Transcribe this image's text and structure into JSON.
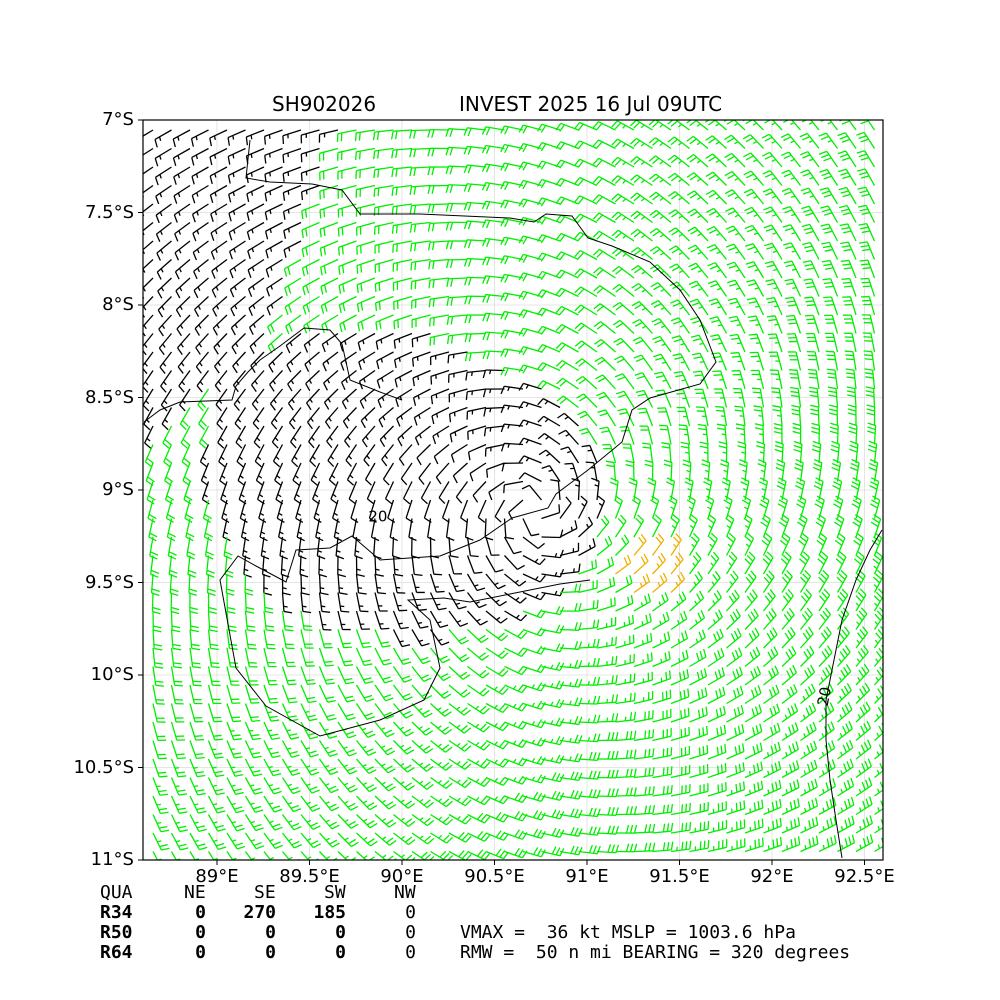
{
  "title_left": "SH902026",
  "title_right": "INVEST 2025 16 Jul 09UTC",
  "chart_data": {
    "type": "wind_barb_map",
    "xlim": [
      88.6,
      92.6
    ],
    "ylim": [
      -11.0,
      -7.0
    ],
    "x_ticks": [
      {
        "value": 89.0,
        "label": "89°E"
      },
      {
        "value": 89.5,
        "label": "89.5°E"
      },
      {
        "value": 90.0,
        "label": "90°E"
      },
      {
        "value": 90.5,
        "label": "90.5°E"
      },
      {
        "value": 91.0,
        "label": "91°E"
      },
      {
        "value": 91.5,
        "label": "91.5°E"
      },
      {
        "value": 92.0,
        "label": "92°E"
      },
      {
        "value": 92.5,
        "label": "92.5°E"
      }
    ],
    "y_ticks": [
      {
        "value": -7.0,
        "label": "7°S"
      },
      {
        "value": -7.5,
        "label": "7.5°S"
      },
      {
        "value": -8.0,
        "label": "8°S"
      },
      {
        "value": -8.5,
        "label": "8.5°S"
      },
      {
        "value": -9.0,
        "label": "9°S"
      },
      {
        "value": -9.5,
        "label": "9.5°S"
      },
      {
        "value": -10.0,
        "label": "10°S"
      },
      {
        "value": -10.5,
        "label": "10.5°S"
      },
      {
        "value": -11.0,
        "label": "11°S"
      }
    ],
    "grid": true,
    "center": {
      "lon": 90.72,
      "lat": -9.1
    },
    "barb_colors": {
      "below_20kt": "#000000",
      "20_to_34kt": "#00ee00",
      "34kt_plus": "#f0b000"
    },
    "contour_labels": [
      {
        "lon": 89.87,
        "lat": -9.17,
        "text": "20"
      },
      {
        "lon": 92.31,
        "lat": -10.12,
        "text": "20"
      }
    ],
    "gale_region": {
      "lon": 91.32,
      "lat": -9.45
    }
  },
  "stats_table": {
    "header": [
      "QUA",
      "NE",
      "SE",
      "SW",
      "NW"
    ],
    "rows": [
      {
        "label": "R34",
        "values": [
          "0",
          "270",
          "185",
          "0"
        ]
      },
      {
        "label": "R50",
        "values": [
          "0",
          "0",
          "0",
          "0"
        ]
      },
      {
        "label": "R64",
        "values": [
          "0",
          "0",
          "0",
          "0"
        ]
      }
    ]
  },
  "summary": {
    "line1": "VMAX =  36 kt MSLP = 1003.6 hPa",
    "line2": "RMW =  50 n mi BEARING = 320 degrees"
  }
}
